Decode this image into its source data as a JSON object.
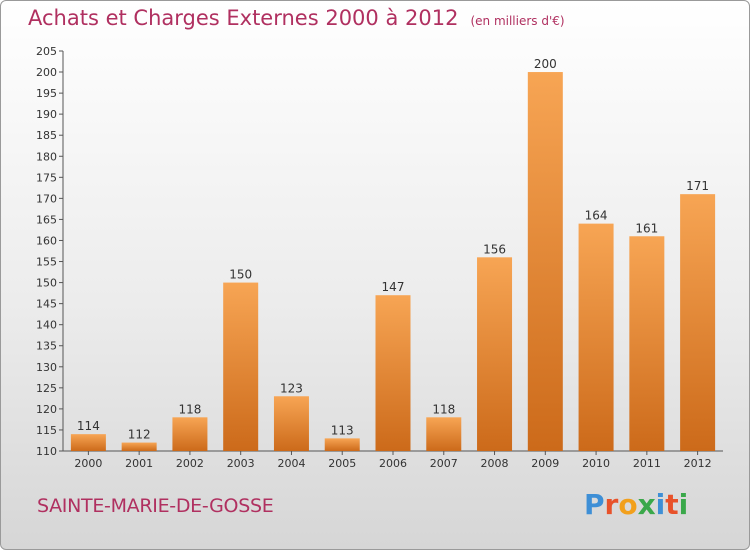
{
  "title": "Achats et Charges Externes 2000 à 2012",
  "unit_note": "(en milliers d'€)",
  "commune": "SAINTE-MARIE-DE-GOSSE",
  "logo_text": "Proxiti",
  "colors": {
    "title": "#b03060",
    "bar_light": "#f7a554",
    "bar_dark": "#cc6a1a",
    "axis": "#555555"
  },
  "chart_data": {
    "type": "bar",
    "title": "Achats et Charges Externes 2000 à 2012",
    "xlabel": "",
    "ylabel": "",
    "categories": [
      "2000",
      "2001",
      "2002",
      "2003",
      "2004",
      "2005",
      "2006",
      "2007",
      "2008",
      "2009",
      "2010",
      "2011",
      "2012"
    ],
    "values": [
      114,
      112,
      118,
      150,
      123,
      113,
      147,
      118,
      156,
      200,
      164,
      161,
      171
    ],
    "ylim": [
      110,
      205
    ],
    "yticks": [
      110,
      115,
      120,
      125,
      130,
      135,
      140,
      145,
      150,
      155,
      160,
      165,
      170,
      175,
      180,
      185,
      190,
      195,
      200,
      205
    ],
    "grid": false,
    "legend": "none"
  }
}
